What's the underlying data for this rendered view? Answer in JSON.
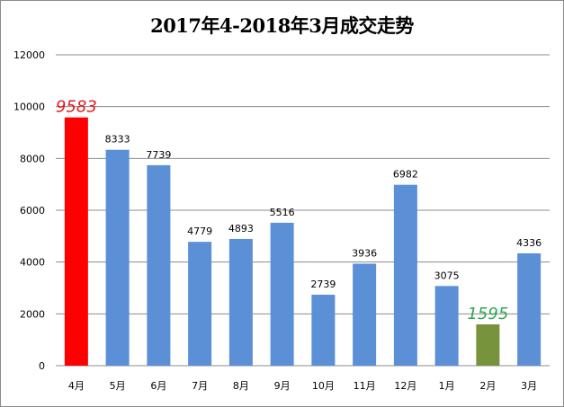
{
  "chart_data": {
    "type": "bar",
    "title": "2017年4-2018年3月成交走势",
    "categories": [
      "4月",
      "5月",
      "6月",
      "7月",
      "8月",
      "9月",
      "10月",
      "11月",
      "12月",
      "1月",
      "2月",
      "3月"
    ],
    "values": [
      9583,
      8333,
      7739,
      4779,
      4893,
      5516,
      2739,
      3936,
      6982,
      3075,
      1595,
      4336
    ],
    "value_labels": [
      "9583",
      "8333",
      "7739",
      "4779",
      "4893",
      "5516",
      "2739",
      "3936",
      "6982",
      "3075",
      "1595",
      "4336"
    ],
    "y_ticks": [
      "0",
      "2000",
      "4000",
      "6000",
      "8000",
      "10000",
      "12000"
    ],
    "ylim": [
      0,
      12000
    ],
    "grid": true,
    "legend": "none",
    "colors": {
      "default_bar": "#5b8fd6",
      "max_bar": "#ff0000",
      "min_bar": "#77933c",
      "max_label": "#e31a1c",
      "min_label": "#2fa84f",
      "grid": "#8c8c8c"
    },
    "highlight": {
      "max_index": 0,
      "min_index": 10
    }
  }
}
